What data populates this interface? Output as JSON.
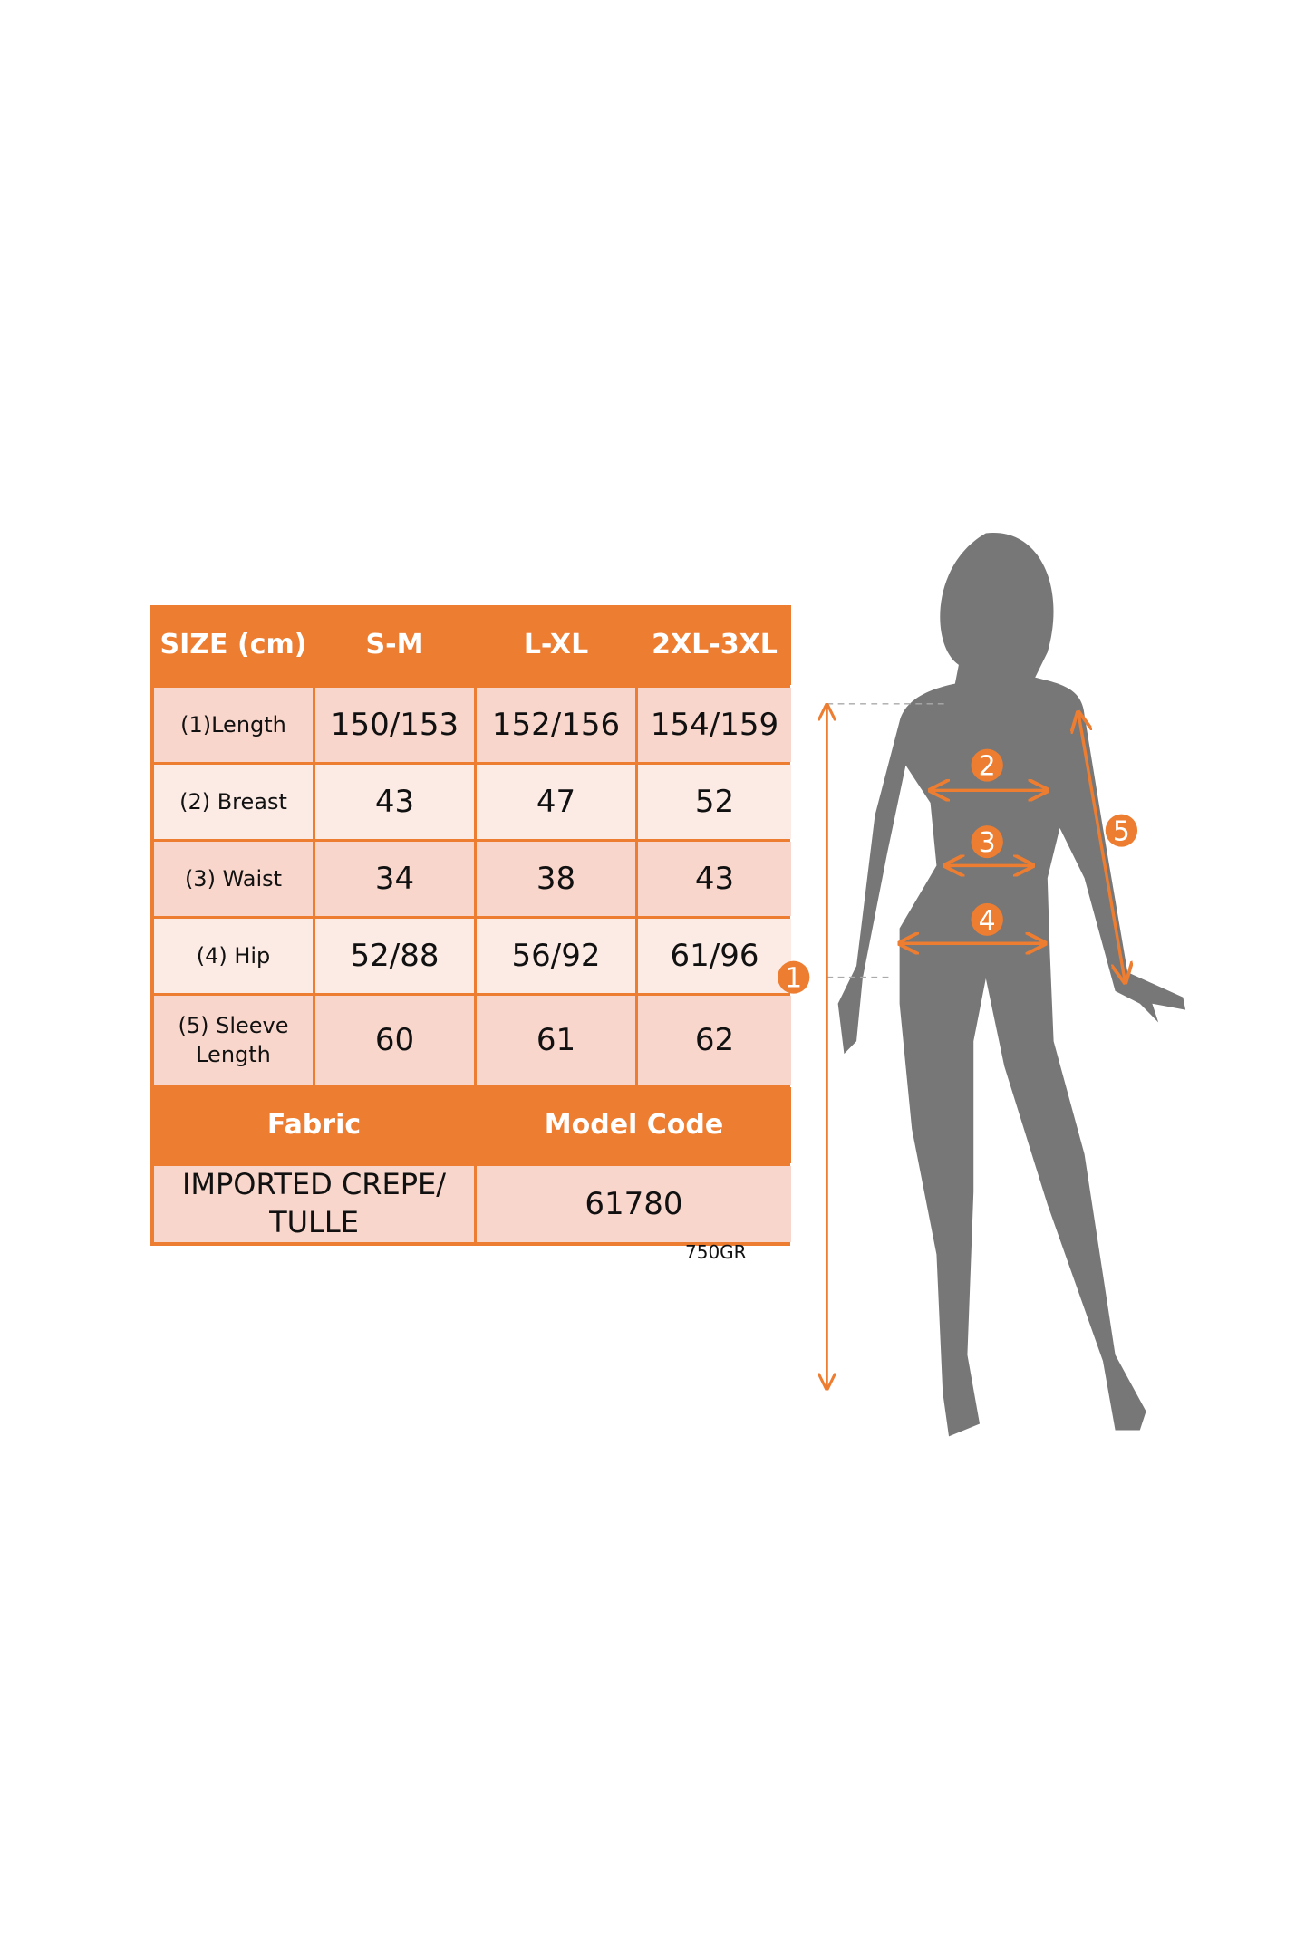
{
  "colors": {
    "accent": "#ED7D31",
    "row_dark": "#F8D6CB",
    "row_light": "#FCEBE5",
    "silhouette": "#777777"
  },
  "table": {
    "header": [
      "SIZE (cm)",
      "S-M",
      "L-XL",
      "2XL-3XL"
    ],
    "rows": [
      {
        "label": "(1)Length",
        "values": [
          "150/153",
          "152/156",
          "154/159"
        ]
      },
      {
        "label": "(2) Breast",
        "values": [
          "43",
          "47",
          "52"
        ]
      },
      {
        "label": "(3) Waist",
        "values": [
          "34",
          "38",
          "43"
        ]
      },
      {
        "label": "(4) Hip",
        "values": [
          "52/88",
          "56/92",
          "61/96"
        ]
      },
      {
        "label": "(5) Sleeve Length",
        "values": [
          "60",
          "61",
          "62"
        ]
      }
    ],
    "footer_headers": [
      "Fabric",
      "Model Code"
    ],
    "footer_values": [
      "IMPORTED CREPE/ TULLE",
      "61780"
    ]
  },
  "weight": "750GR",
  "figure": {
    "markers": [
      "1",
      "2",
      "3",
      "4",
      "5"
    ]
  }
}
